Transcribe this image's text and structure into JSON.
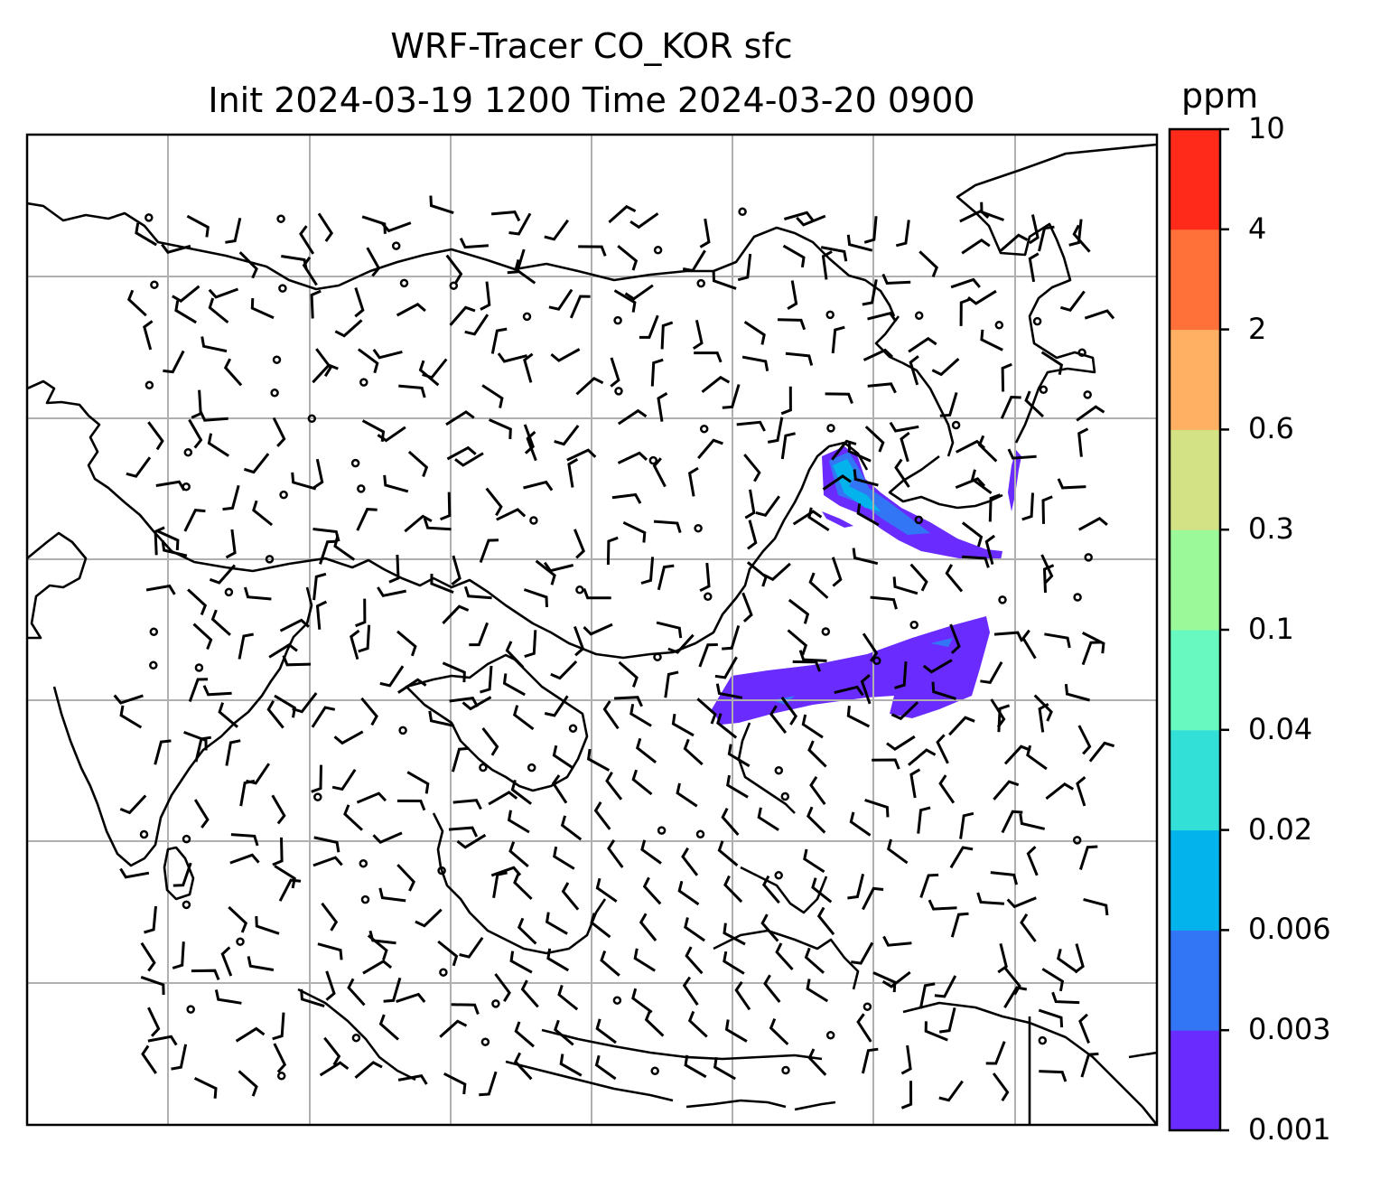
{
  "title": {
    "line1": "WRF-Tracer CO_KOR sfc",
    "line2": "Init 2024-03-19 1200 Time 2024-03-20 0900"
  },
  "map": {
    "field": "surface CO_KOR tracer concentration with wind barbs",
    "gridlines": true,
    "plume_colors": [
      "#6a2bff",
      "#3276f6",
      "#03b4ec"
    ]
  },
  "colorbar": {
    "label": "ppm",
    "ticks": [
      "10",
      "4",
      "2",
      "0.6",
      "0.3",
      "0.1",
      "0.04",
      "0.02",
      "0.006",
      "0.003",
      "0.001"
    ],
    "colors": [
      "#6a2bff",
      "#3276f6",
      "#03b4ec",
      "#33e0d7",
      "#67f9c0",
      "#9cf99a",
      "#d2e285",
      "#ffb062",
      "#ff7139",
      "#ff2a1a"
    ]
  }
}
